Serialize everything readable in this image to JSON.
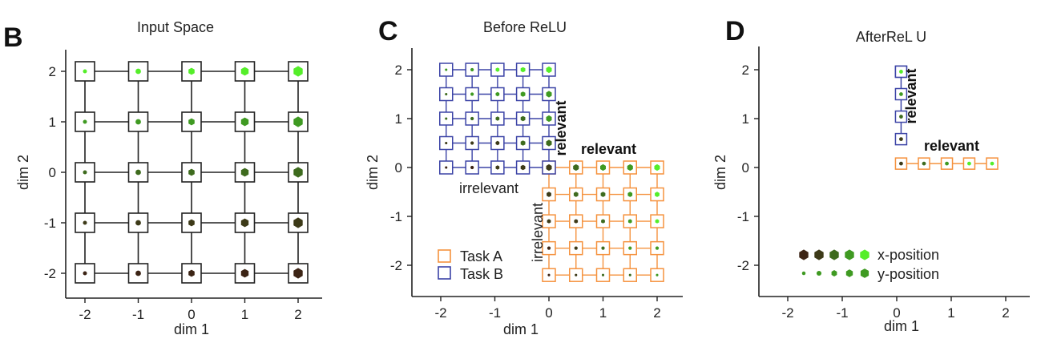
{
  "colors": {
    "taskA": "#f5923e",
    "taskB": "#3b43a6",
    "gridline": "#222222",
    "dots": [
      "#3c2415",
      "#3d3a18",
      "#3e6b1e",
      "#3f9a22",
      "#55ee2a"
    ]
  },
  "panels": [
    {
      "letter": "B",
      "title": "Input Space",
      "xlabel": "dim 1",
      "ylabel": "dim 2"
    },
    {
      "letter": "C",
      "title": "Before ReLU",
      "xlabel": "dim 1",
      "ylabel": "dim 2",
      "annotations": {
        "relevant_b": "relevant",
        "relevant_a": "relevant",
        "irrelevant_b": "irrelevant",
        "irrelevant_a": "irrelevant"
      },
      "legend": [
        "Task A",
        "Task B"
      ]
    },
    {
      "letter": "D",
      "title": "AfterReL U",
      "xlabel": "dim 1",
      "ylabel": "dim 2",
      "annotations": {
        "relevant_b": "relevant",
        "relevant_a": "relevant"
      },
      "legend": [
        "x-position",
        "y-position"
      ]
    }
  ],
  "chart_data": [
    {
      "type": "scatter",
      "title": "Input Space",
      "xlabel": "dim 1",
      "ylabel": "dim 2",
      "xlim": [
        -2.5,
        2.5
      ],
      "ylim": [
        -2.5,
        2.5
      ],
      "xticks": [
        "-2",
        "-1",
        "0",
        "1",
        "2"
      ],
      "yticks": [
        "-2",
        "-1",
        "0",
        "1",
        "2"
      ],
      "grid_x": [
        -2,
        -1,
        0,
        1,
        2
      ],
      "grid_y": [
        -2,
        -1,
        0,
        1,
        2
      ],
      "encoding": "marker size = x-position (1-5), marker color dark-to-bright = y-position (1-5)"
    },
    {
      "type": "scatter",
      "title": "Before ReLU",
      "xlabel": "dim 1",
      "ylabel": "dim 2",
      "xlim": [
        -2.5,
        2.5
      ],
      "ylim": [
        -2.5,
        2.5
      ],
      "xticks": [
        "-2",
        "-1",
        "0",
        "1",
        "2"
      ],
      "yticks": [
        "-2",
        "-1",
        "0",
        "1",
        "2"
      ],
      "series": [
        {
          "name": "Task A",
          "x_values": [
            0,
            0.5,
            1,
            1.5,
            2
          ],
          "y_values": [
            -2.2,
            -1.65,
            -1.1,
            -0.55,
            0
          ]
        },
        {
          "name": "Task B",
          "x_values": [
            -1.9,
            -1.42,
            -0.95,
            -0.48,
            0
          ],
          "y_values": [
            0,
            0.5,
            1,
            1.5,
            2
          ]
        }
      ]
    },
    {
      "type": "scatter",
      "title": "AfterReL U",
      "xlabel": "dim 1",
      "ylabel": "dim 2",
      "xlim": [
        -2.5,
        2.5
      ],
      "ylim": [
        -2.5,
        2.5
      ],
      "xticks": [
        "-2",
        "-1",
        "0",
        "1",
        "2"
      ],
      "yticks": [
        "-2",
        "-1",
        "0",
        "1",
        "2"
      ],
      "series": [
        {
          "name": "Task A",
          "x_values": [
            0.08,
            0.5,
            0.92,
            1.33,
            1.75
          ],
          "y_values": [
            0.08,
            0.08,
            0.08,
            0.08,
            0.08
          ]
        },
        {
          "name": "Task B",
          "x_values": [
            0.08,
            0.08,
            0.08,
            0.08,
            0.08
          ],
          "y_values": [
            0.58,
            1.04,
            1.5,
            1.96,
            1.96
          ]
        }
      ]
    }
  ]
}
